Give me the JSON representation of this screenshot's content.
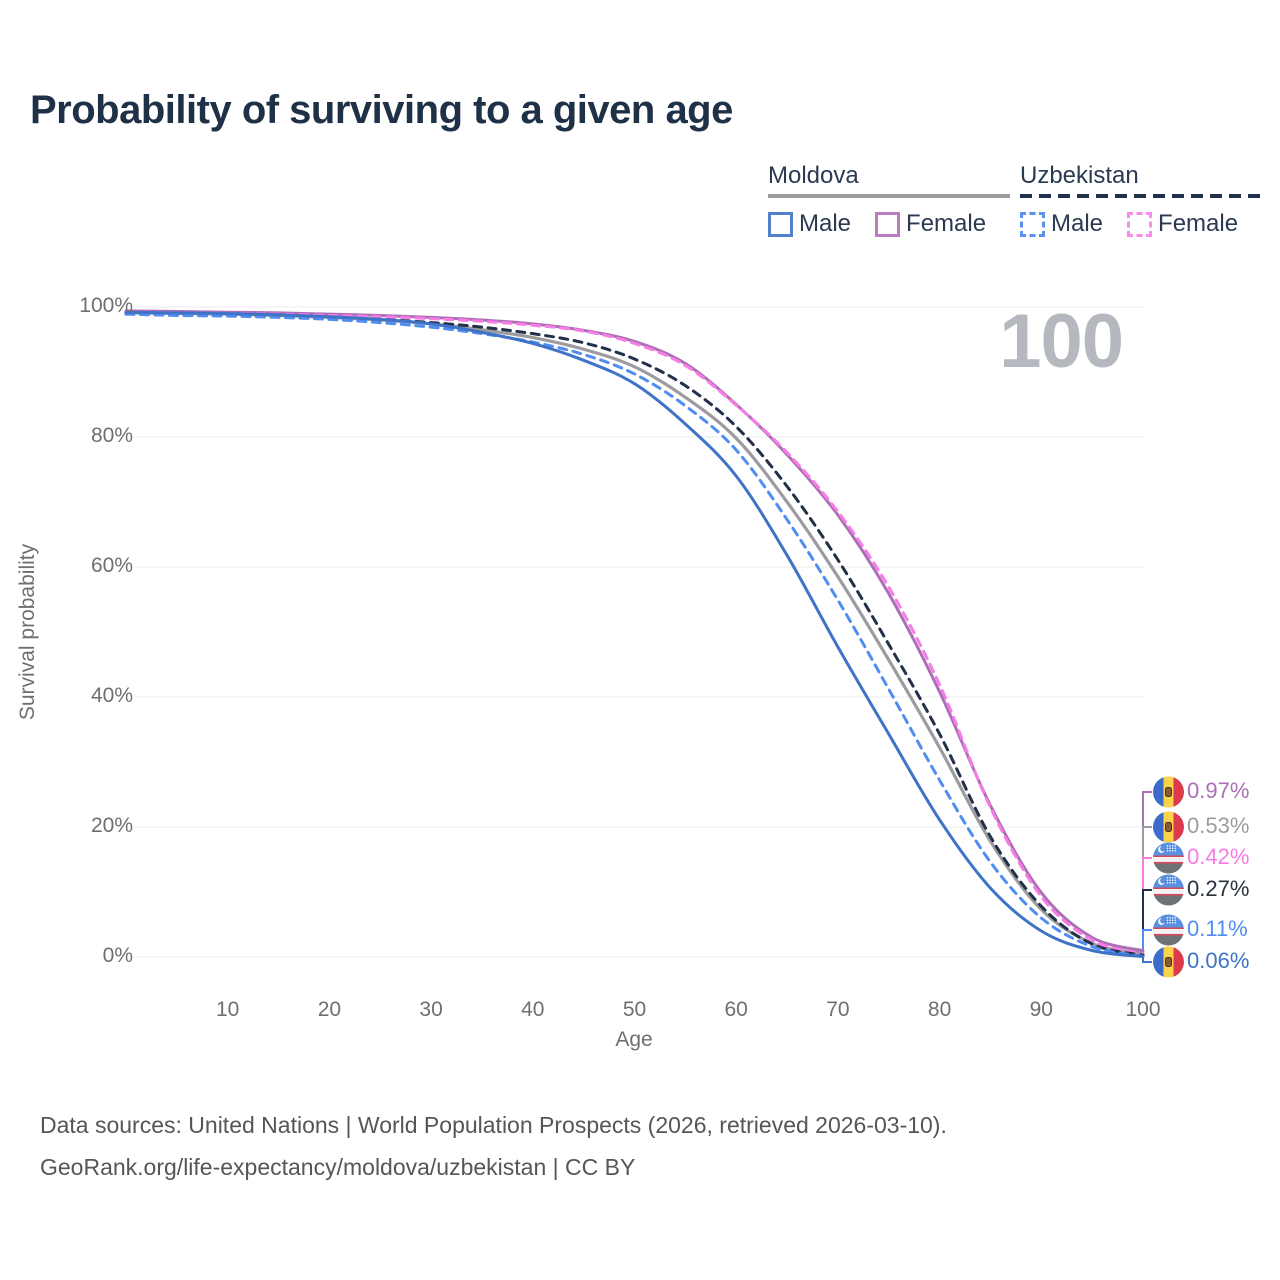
{
  "title": "Probability of surviving to a given age",
  "watermark": "100",
  "legend": {
    "groups": [
      {
        "name": "Moldova",
        "line_style": "solid",
        "line_color": "#9c9ca0",
        "items": [
          {
            "label": "Male",
            "color": "#5381c9",
            "style": "solid"
          },
          {
            "label": "Female",
            "color": "#bc7dc0",
            "style": "solid"
          }
        ]
      },
      {
        "name": "Uzbekistan",
        "line_style": "dashed",
        "line_color": "#22304a",
        "items": [
          {
            "label": "Male",
            "color": "#5b92f0",
            "style": "dashed"
          },
          {
            "label": "Female",
            "color": "#f98be8",
            "style": "dashed"
          }
        ]
      }
    ]
  },
  "chart_data": {
    "type": "line",
    "title": "Probability of surviving to a given age",
    "xlabel": "Age",
    "ylabel": "Survival probability",
    "xlim": [
      0,
      100
    ],
    "ylim": [
      0,
      100
    ],
    "grid": "horizontal",
    "legend_position": "top-right",
    "xticks": [
      10,
      20,
      30,
      40,
      50,
      60,
      70,
      80,
      90,
      100
    ],
    "yticks": [
      0,
      20,
      40,
      60,
      80,
      100
    ],
    "ytick_format": "percent",
    "x": [
      0,
      5,
      10,
      15,
      20,
      25,
      30,
      35,
      40,
      45,
      50,
      55,
      60,
      65,
      70,
      75,
      80,
      85,
      90,
      95,
      100
    ],
    "series": [
      {
        "name": "Moldova average",
        "country": "moldova",
        "sex": "average",
        "style": "solid",
        "color": "#9c9ca0",
        "width": 3.2,
        "values": [
          99.1,
          99.0,
          98.9,
          98.7,
          98.4,
          98.0,
          97.4,
          96.5,
          95.3,
          93.5,
          90.8,
          86.1,
          79.8,
          70.0,
          58.5,
          45.7,
          32.2,
          17.8,
          7.3,
          2.1,
          0.53
        ],
        "end_label": "0.53%",
        "end_label_color": "#9c9ca0",
        "flag": "moldova"
      },
      {
        "name": "Moldova Female",
        "country": "moldova",
        "sex": "female",
        "style": "solid",
        "color": "#ac6fb6",
        "width": 3,
        "values": [
          99.4,
          99.3,
          99.2,
          99.1,
          98.9,
          98.7,
          98.4,
          98.0,
          97.4,
          96.4,
          94.7,
          91.3,
          85.0,
          77.3,
          68.0,
          55.9,
          40.8,
          23.3,
          9.9,
          3.0,
          0.97
        ],
        "end_label": "0.97%",
        "end_label_color": "#aa70b5",
        "flag": "moldova"
      },
      {
        "name": "Uzbekistan Female",
        "country": "uzbekistan",
        "sex": "female",
        "style": "dashed",
        "color": "#f77ce6",
        "width": 3,
        "values": [
          99.2,
          99.1,
          99.0,
          98.9,
          98.7,
          98.5,
          98.2,
          97.8,
          97.2,
          96.3,
          94.4,
          91.0,
          84.9,
          77.6,
          68.5,
          56.9,
          41.9,
          23.0,
          9.3,
          2.6,
          0.42
        ],
        "end_label": "0.42%",
        "end_label_color": "#f87be4",
        "flag": "uzbekistan"
      },
      {
        "name": "Uzbekistan average",
        "country": "uzbekistan",
        "sex": "average",
        "style": "dashed",
        "color": "#22304a",
        "width": 3,
        "values": [
          99.0,
          98.9,
          98.8,
          98.6,
          98.4,
          98.1,
          97.6,
          96.9,
          95.9,
          94.5,
          92.0,
          87.9,
          81.6,
          72.4,
          61.1,
          48.1,
          34.3,
          18.5,
          7.8,
          2.0,
          0.27
        ],
        "end_label": "0.27%",
        "end_label_color": "#2a3240",
        "flag": "uzbekistan"
      },
      {
        "name": "Uzbekistan Male",
        "country": "uzbekistan",
        "sex": "male",
        "style": "dashed",
        "color": "#4f8df2",
        "width": 3,
        "values": [
          98.9,
          98.7,
          98.6,
          98.4,
          98.1,
          97.6,
          96.9,
          95.9,
          94.6,
          92.7,
          89.7,
          84.8,
          78.0,
          67.3,
          54.9,
          41.2,
          27.2,
          14.6,
          6.0,
          1.6,
          0.11
        ],
        "end_label": "0.11%",
        "end_label_color": "#4f8df2",
        "flag": "uzbekistan"
      },
      {
        "name": "Moldova Male",
        "country": "moldova",
        "sex": "male",
        "style": "solid",
        "color": "#3f73c7",
        "width": 3,
        "values": [
          99.2,
          99.1,
          99.0,
          98.8,
          98.5,
          98.1,
          97.4,
          96.1,
          94.4,
          91.8,
          88.2,
          82.0,
          74.0,
          61.8,
          47.7,
          34.3,
          21.1,
          10.6,
          4.0,
          1.0,
          0.06
        ],
        "end_label": "0.06%",
        "end_label_color": "#3f73c7",
        "flag": "moldova"
      }
    ]
  },
  "footer": {
    "line1": "Data sources: United Nations | World Population Prospects (2026, retrieved 2026-03-10).",
    "line2": "GeoRank.org/life-expectancy/moldova/uzbekistan | CC BY"
  }
}
